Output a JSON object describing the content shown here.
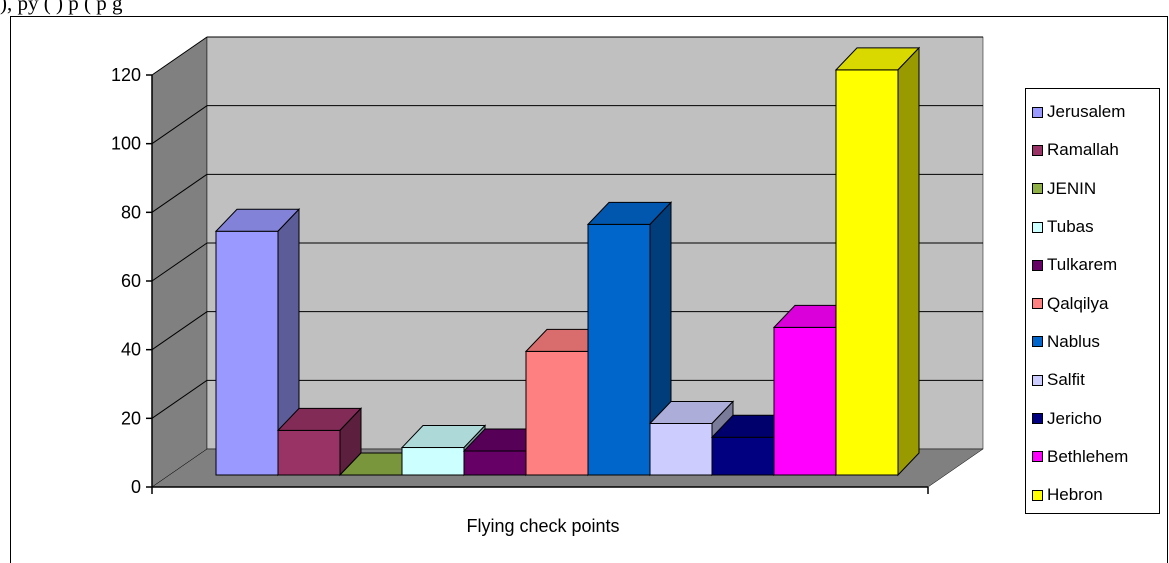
{
  "top_text": "),                                                                                     py (                          )              p      ( p      g",
  "chart_data": {
    "type": "bar",
    "title": "",
    "xlabel": "Flying check points",
    "ylabel": "",
    "categories": [
      "Flying check points"
    ],
    "ylim": [
      0,
      120
    ],
    "yticks": [
      "0",
      "20",
      "40",
      "60",
      "80",
      "100",
      "120"
    ],
    "grid": true,
    "three_d": true,
    "legend_position": "right",
    "series": [
      {
        "name": "Jerusalem",
        "value": 71,
        "color": "#9999ff"
      },
      {
        "name": "Ramallah",
        "value": 13,
        "color": "#993366"
      },
      {
        "name": "JENIN",
        "value": 0,
        "color": "#8fb046"
      },
      {
        "name": "Tubas",
        "value": 8,
        "color": "#ccffff"
      },
      {
        "name": "Tulkarem",
        "value": 7,
        "color": "#660066"
      },
      {
        "name": "Qalqilya",
        "value": 36,
        "color": "#ff8080"
      },
      {
        "name": "Nablus",
        "value": 73,
        "color": "#0066cc"
      },
      {
        "name": "Salfit",
        "value": 15,
        "color": "#ccccff"
      },
      {
        "name": "Jericho",
        "value": 11,
        "color": "#000080"
      },
      {
        "name": "Bethlehem",
        "value": 43,
        "color": "#ff00ff"
      },
      {
        "name": "Hebron",
        "value": 118,
        "color": "#ffff00"
      }
    ]
  }
}
